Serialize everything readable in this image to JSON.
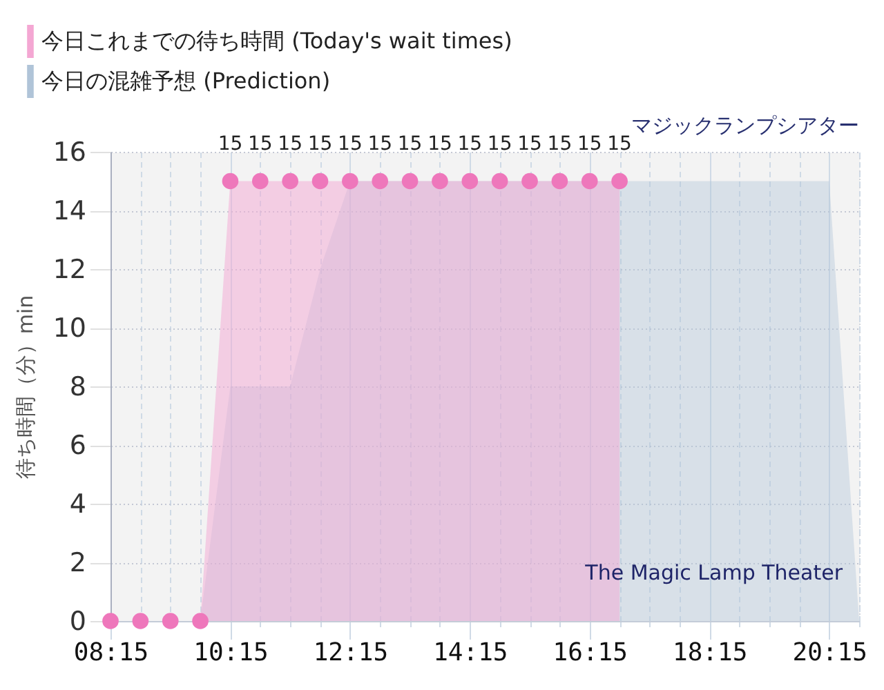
{
  "chart_data": {
    "type": "area",
    "title": "マジックランプシアター",
    "ylabel": "待ち時間（分）min",
    "annotations": [
      "The Magic Lamp Theater"
    ],
    "series": [
      {
        "name": "今日これまでの待ち時間 (Today's wait times)",
        "color": "#ee77bb",
        "marker": "circle",
        "x": [
          8.25,
          8.75,
          9.25,
          9.75,
          10.25,
          10.75,
          11.25,
          11.75,
          12.25,
          12.75,
          13.25,
          13.75,
          14.25,
          14.75,
          15.25,
          15.75,
          16.25,
          16.75
        ],
        "values": [
          0,
          0,
          0,
          0,
          15,
          15,
          15,
          15,
          15,
          15,
          15,
          15,
          15,
          15,
          15,
          15,
          15,
          15
        ],
        "value_labels": [
          null,
          null,
          null,
          null,
          "15",
          "15",
          "15",
          "15",
          "15",
          "15",
          "15",
          "15",
          "15",
          "15",
          "15",
          "15",
          "15",
          "15"
        ]
      },
      {
        "name": "今日の混雑予想 (Prediction)",
        "color": "#b0c4d8",
        "x": [
          8.25,
          8.75,
          9.25,
          9.75,
          10.25,
          10.75,
          11.25,
          11.75,
          12.25,
          12.75,
          13.25,
          13.75,
          14.25,
          14.75,
          15.25,
          15.75,
          16.25,
          16.75,
          17.25,
          17.75,
          18.25,
          18.75,
          19.25,
          19.75,
          20.25,
          20.75
        ],
        "values": [
          0,
          0,
          0,
          0,
          8,
          8,
          8,
          12,
          15,
          15,
          15,
          15,
          15,
          15,
          15,
          15,
          15,
          15,
          15,
          15,
          15,
          15,
          15,
          15,
          15,
          0
        ]
      }
    ],
    "xlim": [
      8.25,
      20.75
    ],
    "xticks": [
      {
        "value": 8.25,
        "label": "08:15"
      },
      {
        "value": 8.75,
        "label": null
      },
      {
        "value": 9.25,
        "label": null
      },
      {
        "value": 9.75,
        "label": null
      },
      {
        "value": 10.25,
        "label": "10:15"
      },
      {
        "value": 10.75,
        "label": null
      },
      {
        "value": 11.25,
        "label": null
      },
      {
        "value": 11.75,
        "label": null
      },
      {
        "value": 12.25,
        "label": "12:15"
      },
      {
        "value": 12.75,
        "label": null
      },
      {
        "value": 13.25,
        "label": null
      },
      {
        "value": 13.75,
        "label": null
      },
      {
        "value": 14.25,
        "label": "14:15"
      },
      {
        "value": 14.75,
        "label": null
      },
      {
        "value": 15.25,
        "label": null
      },
      {
        "value": 15.75,
        "label": null
      },
      {
        "value": 16.25,
        "label": "16:15"
      },
      {
        "value": 16.75,
        "label": null
      },
      {
        "value": 17.25,
        "label": null
      },
      {
        "value": 17.75,
        "label": null
      },
      {
        "value": 18.25,
        "label": "18:15"
      },
      {
        "value": 18.75,
        "label": null
      },
      {
        "value": 19.25,
        "label": null
      },
      {
        "value": 19.75,
        "label": null
      },
      {
        "value": 20.25,
        "label": "20:15"
      },
      {
        "value": 20.75,
        "label": null
      }
    ],
    "ylim": [
      0,
      16
    ],
    "yticks": [
      0,
      2,
      4,
      6,
      8,
      10,
      12,
      14,
      16
    ],
    "grid": true,
    "legend": "top left"
  }
}
